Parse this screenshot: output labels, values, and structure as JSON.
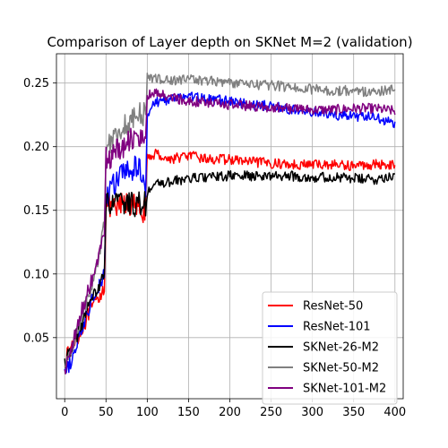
{
  "chart_data": {
    "type": "line",
    "title": "Comparison of Layer depth on SKNet M=2 (validation)",
    "xlabel": "",
    "ylabel": "",
    "xlim": [
      -10,
      410
    ],
    "ylim": [
      0.002,
      0.273
    ],
    "xticks": [
      0,
      50,
      100,
      150,
      200,
      250,
      300,
      350,
      400
    ],
    "yticks": [
      0.05,
      0.1,
      0.15,
      0.2,
      0.25
    ],
    "ytick_labels": [
      "0.05",
      "0.10",
      "0.15",
      "0.20",
      "0.25"
    ],
    "grid": true,
    "legend_position": "lower-right",
    "series": [
      {
        "name": "ResNet-50",
        "color": "#ff0000",
        "x": [
          0,
          10,
          20,
          30,
          40,
          48,
          50,
          60,
          70,
          80,
          90,
          98,
          100,
          110,
          125,
          150,
          175,
          200,
          225,
          250,
          275,
          300,
          325,
          350,
          375,
          400
        ],
        "y": [
          0.032,
          0.045,
          0.055,
          0.07,
          0.08,
          0.09,
          0.155,
          0.15,
          0.155,
          0.155,
          0.15,
          0.15,
          0.19,
          0.195,
          0.19,
          0.193,
          0.19,
          0.19,
          0.188,
          0.187,
          0.186,
          0.186,
          0.186,
          0.185,
          0.186,
          0.186
        ]
      },
      {
        "name": "ResNet-101",
        "color": "#0000ff",
        "x": [
          0,
          10,
          20,
          30,
          40,
          48,
          50,
          60,
          70,
          80,
          90,
          98,
          100,
          110,
          125,
          150,
          175,
          200,
          225,
          250,
          275,
          300,
          325,
          350,
          375,
          400
        ],
        "y": [
          0.02,
          0.035,
          0.055,
          0.075,
          0.09,
          0.1,
          0.16,
          0.17,
          0.18,
          0.18,
          0.185,
          0.17,
          0.225,
          0.235,
          0.237,
          0.24,
          0.237,
          0.236,
          0.233,
          0.232,
          0.229,
          0.227,
          0.225,
          0.224,
          0.223,
          0.218
        ]
      },
      {
        "name": "SKNet-26-M2",
        "color": "#000000",
        "x": [
          0,
          10,
          20,
          30,
          40,
          48,
          50,
          60,
          70,
          80,
          90,
          98,
          100,
          110,
          125,
          150,
          175,
          200,
          225,
          250,
          275,
          300,
          325,
          350,
          375,
          400
        ],
        "y": [
          0.03,
          0.045,
          0.06,
          0.075,
          0.09,
          0.1,
          0.155,
          0.155,
          0.155,
          0.155,
          0.155,
          0.155,
          0.165,
          0.17,
          0.172,
          0.175,
          0.176,
          0.177,
          0.177,
          0.177,
          0.177,
          0.176,
          0.176,
          0.175,
          0.174,
          0.178
        ]
      },
      {
        "name": "SKNet-50-M2",
        "color": "#808080",
        "x": [
          0,
          10,
          20,
          30,
          40,
          48,
          50,
          60,
          70,
          80,
          90,
          98,
          100,
          110,
          125,
          150,
          175,
          200,
          225,
          250,
          275,
          300,
          325,
          350,
          375,
          400
        ],
        "y": [
          0.025,
          0.045,
          0.065,
          0.085,
          0.11,
          0.14,
          0.2,
          0.21,
          0.215,
          0.22,
          0.225,
          0.225,
          0.255,
          0.254,
          0.252,
          0.253,
          0.252,
          0.25,
          0.249,
          0.248,
          0.247,
          0.245,
          0.244,
          0.244,
          0.243,
          0.245
        ]
      },
      {
        "name": "SKNet-101-M2",
        "color": "#800080",
        "x": [
          0,
          10,
          20,
          30,
          40,
          48,
          50,
          60,
          70,
          80,
          90,
          98,
          100,
          110,
          125,
          150,
          175,
          200,
          225,
          250,
          275,
          300,
          325,
          350,
          375,
          400
        ],
        "y": [
          0.025,
          0.045,
          0.07,
          0.09,
          0.11,
          0.13,
          0.19,
          0.195,
          0.2,
          0.205,
          0.21,
          0.21,
          0.24,
          0.242,
          0.239,
          0.236,
          0.234,
          0.233,
          0.232,
          0.231,
          0.23,
          0.229,
          0.229,
          0.23,
          0.23,
          0.228
        ]
      }
    ]
  }
}
